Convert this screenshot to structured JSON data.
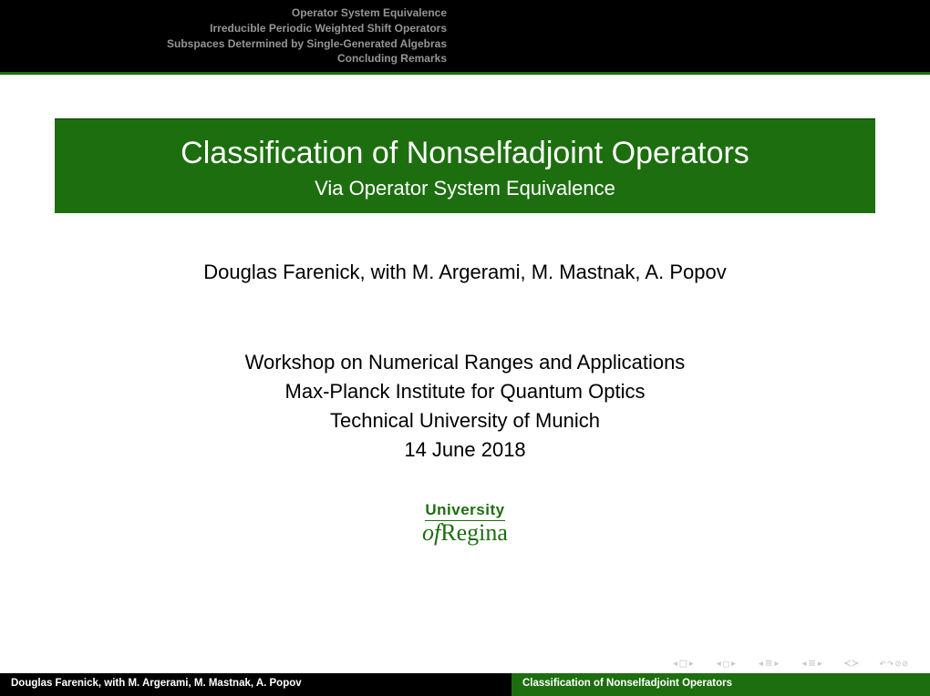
{
  "header": {
    "nav_items": [
      "Operator System Equivalence",
      "Irreducible Periodic Weighted Shift Operators",
      "Subspaces Determined by Single-Generated Algebras",
      "Concluding Remarks"
    ]
  },
  "title": {
    "main": "Classification of Nonselfadjoint Operators",
    "sub": "Via Operator System Equivalence"
  },
  "authors": "Douglas Farenick, with M. Argerami, M. Mastnak, A. Popov",
  "event": {
    "line1": "Workshop on Numerical Ranges and Applications",
    "line2": "Max-Planck Institute for Quantum Optics",
    "line3": "Technical University of Munich",
    "line4": "14 June 2018"
  },
  "logo": {
    "top": "University",
    "of": "of",
    "name": "Regina"
  },
  "footer": {
    "left": "Douglas Farenick, with M. Argerami, M. Mastnak, A. Popov",
    "right": "Classification of Nonselfadjoint Operators"
  },
  "colors": {
    "primary_green": "#1d6e0f",
    "black": "#000000",
    "nav_gray": "#959595",
    "icon_gray": "#c9c9c9"
  }
}
